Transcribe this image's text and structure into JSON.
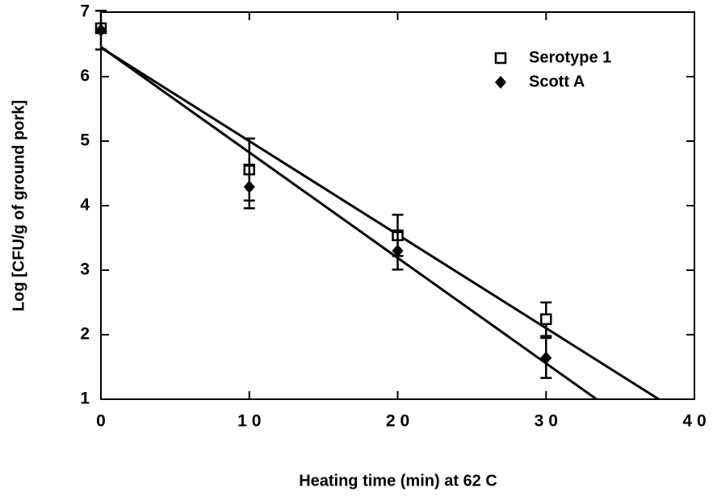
{
  "chart_data": {
    "type": "scatter",
    "xlabel": "Heating time (min) at 62 C",
    "ylabel": "Log [CFU/g of ground pork]",
    "xlim": [
      0,
      40
    ],
    "xticks": [
      0,
      10,
      20,
      30,
      40
    ],
    "ylim": [
      1,
      7
    ],
    "yticks": [
      1,
      2,
      3,
      4,
      5,
      6,
      7
    ],
    "legend": "upper right",
    "series": [
      {
        "name": "Serotype 1",
        "color": "#000000",
        "marker": "square",
        "x": [
          0,
          10,
          20,
          30
        ],
        "values": [
          6.75,
          4.56,
          3.54,
          2.24
        ],
        "errors": [
          0.05,
          0.48,
          0.32,
          0.26
        ],
        "fit": {
          "x": [
            0,
            37.6
          ],
          "values": [
            6.45,
            1
          ]
        }
      },
      {
        "name": "Scott A",
        "color": "#000000",
        "marker": "diamond",
        "x": [
          0,
          10,
          20,
          30
        ],
        "values": [
          6.72,
          4.29,
          3.3,
          1.64
        ],
        "errors": [
          0.3,
          0.33,
          0.29,
          0.31
        ],
        "fit": {
          "x": [
            0,
            33.4
          ],
          "values": [
            6.46,
            1
          ]
        }
      }
    ]
  }
}
